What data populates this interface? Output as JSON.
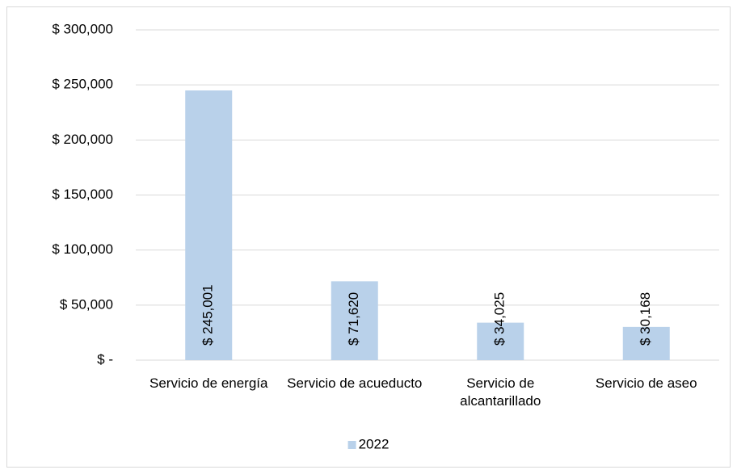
{
  "chart_data": {
    "type": "bar",
    "categories": [
      "Servicio de energía",
      "Servicio de acueducto",
      "Servicio de alcantarillado",
      "Servicio de aseo"
    ],
    "series": [
      {
        "name": "2022",
        "color": "#b9d1ea",
        "values": [
          245001,
          71620,
          34025,
          30168
        ],
        "value_labels": [
          "$ 245,001",
          "$ 71,620",
          "$ 34,025",
          "$ 30,168"
        ]
      }
    ],
    "ylim": [
      0,
      300000
    ],
    "yticks": [
      {
        "value": 0,
        "label": "$ -"
      },
      {
        "value": 50000,
        "label": "$ 50,000"
      },
      {
        "value": 100000,
        "label": "$ 100,000"
      },
      {
        "value": 150000,
        "label": "$ 150,000"
      },
      {
        "value": 200000,
        "label": "$ 200,000"
      },
      {
        "value": 250000,
        "label": "$ 250,000"
      },
      {
        "value": 300000,
        "label": "$ 300,000"
      }
    ],
    "grid": true,
    "legend": "bottom"
  }
}
